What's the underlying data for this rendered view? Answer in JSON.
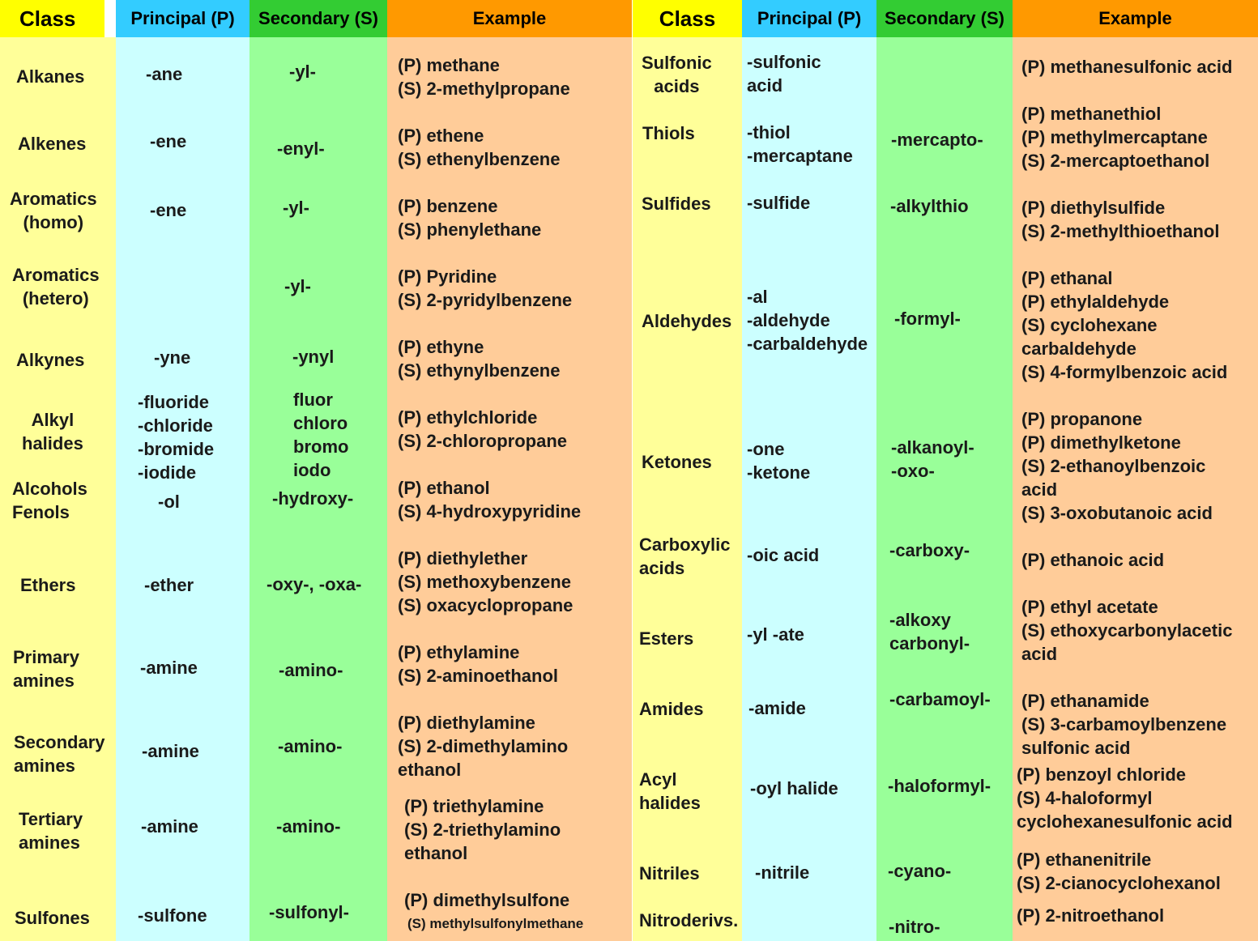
{
  "headers": {
    "class": "Class",
    "principal": "Principal (P)",
    "secondary": "Secondary (S)",
    "example": "Example"
  },
  "colors": {
    "class_header": "#ffff00",
    "class_col": "#ffff99",
    "principal_header": "#33ccff",
    "principal_col": "#ccffff",
    "secondary_header": "#33cc33",
    "secondary_col": "#99ff99",
    "example_header": "#ff9900",
    "example_col": "#ffcc99"
  },
  "left_rows": [
    {
      "class": "Alkanes",
      "principal": "-ane",
      "secondary": "-yl-",
      "example": "(P) methane\n(S) 2-methylpropane"
    },
    {
      "class": "Alkenes",
      "principal": "-ene",
      "secondary": "-enyl-",
      "example": "(P) ethene\n(S) ethenylbenzene"
    },
    {
      "class": "Aromatics\n(homo)",
      "principal": "-ene",
      "secondary": "-yl-",
      "example": "(P) benzene\n(S) phenylethane"
    },
    {
      "class": "Aromatics\n(hetero)",
      "principal": "",
      "secondary": "-yl-",
      "example": "(P) Pyridine\n(S) 2-pyridylbenzene"
    },
    {
      "class": "Alkynes",
      "principal": "-yne",
      "secondary": "-ynyl",
      "example": "(P) ethyne\n(S) ethynylbenzene"
    },
    {
      "class": "Alkyl\nhalides",
      "principal": "-fluoride\n-chloride\n-bromide\n-iodide",
      "secondary": "fluor\nchloro\nbromo\niodo",
      "example": "(P) ethylchloride\n(S) 2-chloropropane"
    },
    {
      "class": "Alcohols\nFenols",
      "principal": "-ol",
      "secondary": "-hydroxy-",
      "example": "(P) ethanol\n(S) 4-hydroxypyridine"
    },
    {
      "class": "Ethers",
      "principal": "-ether",
      "secondary": "-oxy-, -oxa-",
      "example": "(P) diethylether\n(S) methoxybenzene\n(S) oxacyclopropane"
    },
    {
      "class": "Primary\namines",
      "principal": "-amine",
      "secondary": "-amino-",
      "example": "(P) ethylamine\n(S) 2-aminoethanol"
    },
    {
      "class": "Secondary\namines",
      "principal": "-amine",
      "secondary": "-amino-",
      "example": "(P) diethylamine\n(S) 2-dimethylamino\nethanol"
    },
    {
      "class": "Tertiary\namines",
      "principal": "-amine",
      "secondary": "-amino-",
      "example": "(P) triethylamine\n(S) 2-triethylamino\nethanol"
    },
    {
      "class": "Sulfones",
      "principal": "-sulfone",
      "secondary": "-sulfonyl-",
      "example": "(P) dimethylsulfone",
      "example_small": "(S) methylsulfonylmethane"
    }
  ],
  "right_rows": [
    {
      "class": "Sulfonic\nacids",
      "principal": "-sulfonic\nacid",
      "secondary": "",
      "example": "(P) methanesulfonic acid"
    },
    {
      "class": "Thiols",
      "principal": "-thiol\n-mercaptane",
      "secondary": "-mercapto-",
      "example": "(P) methanethiol\n(P) methylmercaptane\n(S) 2-mercaptoethanol"
    },
    {
      "class": "Sulfides",
      "principal": "-sulfide",
      "secondary": "-alkylthio",
      "example": "(P) diethylsulfide\n(S) 2-methylthioethanol"
    },
    {
      "class": "Aldehydes",
      "principal": "-al\n-aldehyde\n-carbaldehyde",
      "secondary": "-formyl-",
      "example": "(P) ethanal\n(P) ethylaldehyde\n(S) cyclohexane\ncarbaldehyde\n(S) 4-formylbenzoic acid"
    },
    {
      "class": "Ketones",
      "principal": "-one\n-ketone",
      "secondary": "-alkanoyl-\n-oxo-",
      "example": "(P) propanone\n(P) dimethylketone\n(S) 2-ethanoylbenzoic\nacid\n(S) 3-oxobutanoic acid"
    },
    {
      "class": "Carboxylic\nacids",
      "principal": "-oic acid",
      "secondary": "-carboxy-",
      "example": "(P) ethanoic acid"
    },
    {
      "class": "Esters",
      "principal": "-yl -ate",
      "secondary": "-alkoxy\ncarbonyl-",
      "example": "(P) ethyl acetate\n(S) ethoxycarbonylacetic\nacid"
    },
    {
      "class": "Amides",
      "principal": "-amide",
      "secondary": "-carbamoyl-",
      "example": "(P) ethanamide\n(S) 3-carbamoylbenzene\nsulfonic acid"
    },
    {
      "class": "Acyl\nhalides",
      "principal": "-oyl halide",
      "secondary": "-haloformyl-",
      "example": "(P) benzoyl chloride\n(S) 4-haloformyl\ncyclohexanesulfonic acid"
    },
    {
      "class": "Nitriles",
      "principal": "-nitrile",
      "secondary": "-cyano-",
      "example": "(P) ethanenitrile\n(S) 2-cianocyclohexanol"
    },
    {
      "class": "Nitroderivs.",
      "principal": "",
      "secondary": "-nitro-",
      "example": "(P) 2-nitroethanol"
    }
  ]
}
